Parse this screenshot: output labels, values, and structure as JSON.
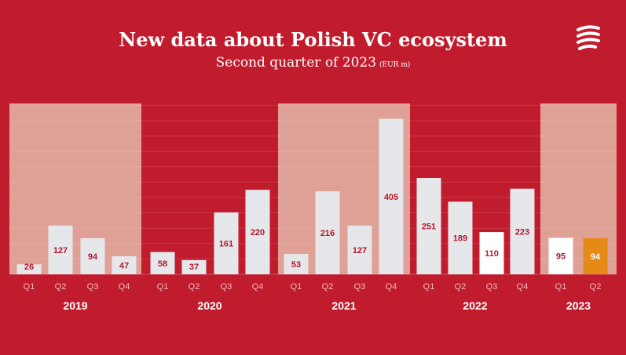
{
  "header": {
    "title": "New data about Polish VC ecosystem",
    "subtitle": "Second quarter of 2023",
    "unit": "(EUR m)"
  },
  "logo": {
    "icon": "brand-waves-logo-icon"
  },
  "colors": {
    "background": "#c11c2e",
    "band": "#dfa096",
    "bar": "#e6e7ea",
    "bar_highlight": "#ffffff",
    "bar_current": "#e58a17",
    "value_text": "#b3182b"
  },
  "chart_data": {
    "type": "bar",
    "title": "New data about Polish VC ecosystem",
    "subtitle": "Second quarter of 2023",
    "unit": "EUR m",
    "ylim": [
      0,
      420
    ],
    "grid": true,
    "groups": [
      {
        "year": "2019",
        "quarters": [
          "Q1",
          "Q2",
          "Q3",
          "Q4"
        ],
        "values": [
          26,
          127,
          94,
          47
        ],
        "shaded": true
      },
      {
        "year": "2020",
        "quarters": [
          "Q1",
          "Q2",
          "Q3",
          "Q4"
        ],
        "values": [
          58,
          37,
          161,
          220
        ],
        "shaded": false
      },
      {
        "year": "2021",
        "quarters": [
          "Q1",
          "Q2",
          "Q3",
          "Q4"
        ],
        "values": [
          53,
          216,
          127,
          405
        ],
        "shaded": true
      },
      {
        "year": "2022",
        "quarters": [
          "Q1",
          "Q2",
          "Q3",
          "Q4"
        ],
        "values": [
          251,
          189,
          110,
          223
        ],
        "shaded": false
      },
      {
        "year": "2023",
        "quarters": [
          "Q1",
          "Q2"
        ],
        "values": [
          95,
          94
        ],
        "shaded": true
      }
    ],
    "highlighted": [
      {
        "year": "2022",
        "quarter": "Q3"
      },
      {
        "year": "2023",
        "quarter": "Q1"
      }
    ],
    "current": {
      "year": "2023",
      "quarter": "Q2"
    }
  }
}
